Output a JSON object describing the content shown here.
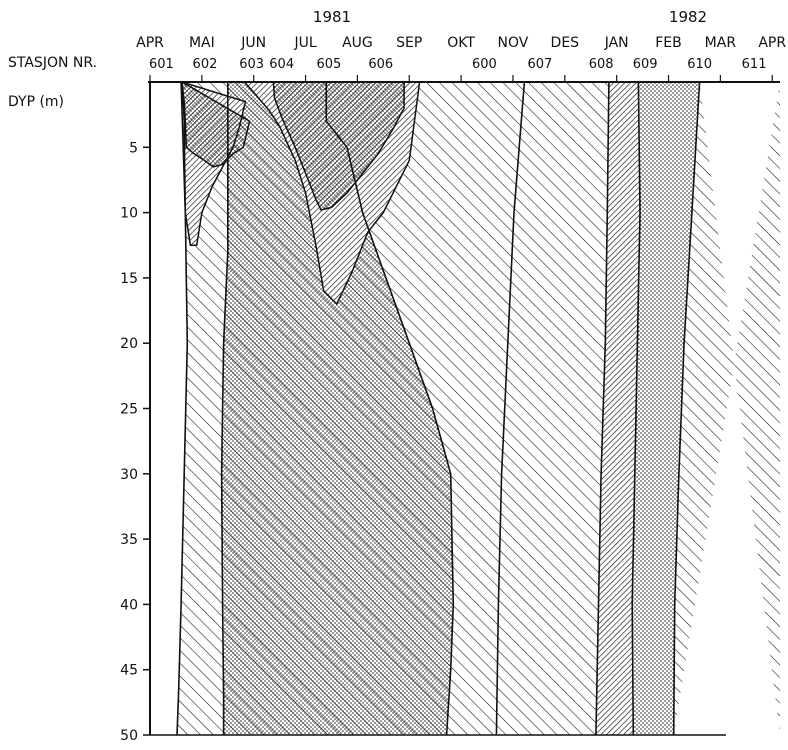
{
  "chart_data": {
    "type": "area",
    "years": [
      "1981",
      "1982"
    ],
    "months": [
      "APR",
      "MAI",
      "JUN",
      "JUL",
      "AUG",
      "SEP",
      "OKT",
      "NOV",
      "DES",
      "JAN",
      "FEB",
      "MAR",
      "APR"
    ],
    "station_label": "STASJON NR.",
    "stations": [
      "601",
      "602",
      "603",
      "604",
      "605",
      "606",
      "600",
      "607",
      "608",
      "609",
      "610",
      "611"
    ],
    "ylabel": "DYP (m)",
    "yticks": [
      "5",
      "10",
      "15",
      "20",
      "25",
      "30",
      "35",
      "40",
      "45",
      "50"
    ],
    "ylim": [
      0,
      50
    ],
    "x_unit": "months from APR 1981",
    "xlim": [
      0,
      12.15
    ],
    "boundaries": {
      "b1": {
        "x": [
          0.6,
          0.68,
          0.72,
          0.66,
          0.6,
          0.55,
          0.52
        ],
        "y": [
          0,
          10,
          20,
          30,
          40,
          47,
          50
        ]
      },
      "b2": {
        "x": [
          1.5,
          1.42,
          1.38,
          1.4,
          1.42,
          1.42
        ],
        "y": [
          13,
          20,
          30,
          40,
          47,
          50
        ]
      },
      "b3": {
        "x": [
          3.4,
          3.8,
          4.1,
          4.55,
          5.0,
          5.45,
          5.8,
          5.85,
          5.8,
          5.72
        ],
        "y": [
          3,
          5,
          10,
          15,
          20,
          25,
          30,
          40,
          45,
          50
        ]
      },
      "b4": {
        "x": [
          7.22,
          7.02,
          6.9,
          6.78,
          6.72,
          6.68
        ],
        "y": [
          0,
          10,
          20,
          30,
          40,
          50
        ]
      },
      "b5": {
        "x": [
          8.85,
          8.82,
          8.78,
          8.7,
          8.65,
          8.6
        ],
        "y": [
          0,
          10,
          20,
          30,
          40,
          50
        ]
      },
      "b6": {
        "x": [
          9.42,
          9.45,
          9.4,
          9.35,
          9.3,
          9.32
        ],
        "y": [
          0,
          10,
          20,
          30,
          40,
          50
        ]
      },
      "b7": {
        "x": [
          10.6,
          10.45,
          10.3,
          10.2,
          10.12,
          10.1
        ],
        "y": [
          0,
          10,
          20,
          30,
          40,
          50
        ]
      }
    },
    "surface_layers": [
      {
        "pattern": "dots",
        "x": [
          0.62,
          0.67,
          0.7,
          0.85,
          1.05,
          1.22,
          1.4,
          1.6,
          1.8,
          1.92
        ],
        "y": [
          0,
          2,
          5,
          5.5,
          6,
          6.5,
          6.3,
          5.5,
          5,
          3
        ]
      },
      {
        "pattern": "dense-hatch",
        "x": [
          0.62,
          0.66,
          0.68,
          0.78,
          0.9,
          1.0,
          1.2,
          1.4,
          1.6,
          1.72,
          1.84
        ],
        "y": [
          0,
          3,
          10,
          12.5,
          12.5,
          10,
          8,
          6.5,
          5,
          3.5,
          1.5
        ]
      },
      {
        "pattern": "dense-hatch",
        "x": [
          1.82,
          2.0,
          2.3,
          2.5,
          2.8,
          3.0,
          3.2,
          3.35,
          3.6,
          3.9,
          4.2,
          4.5,
          5.0,
          5.2
        ],
        "y": [
          0,
          0.8,
          2.2,
          3.4,
          6,
          8.5,
          12.5,
          16,
          17,
          14.5,
          11.5,
          10,
          6,
          0
        ]
      },
      {
        "pattern": "dots",
        "x": [
          2.38,
          2.4,
          2.55,
          2.8,
          3.0,
          3.2,
          3.3,
          3.5,
          3.8,
          4.1,
          4.4,
          4.7,
          4.9,
          4.9
        ],
        "y": [
          0,
          1.2,
          2.8,
          5,
          7,
          9,
          9.8,
          9.6,
          8.5,
          7,
          5.5,
          3.5,
          2,
          0
        ]
      }
    ]
  }
}
